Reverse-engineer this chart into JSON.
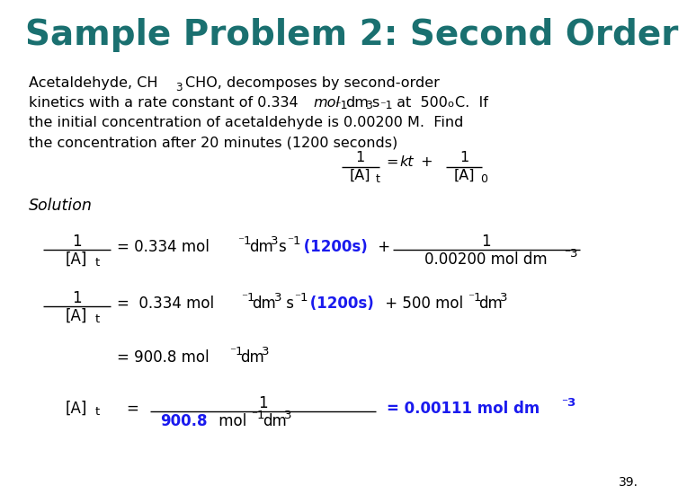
{
  "title": "Sample Problem 2: Second Order",
  "title_color": "#1a7070",
  "bg_color": "#ffffff",
  "body_color": "#000000",
  "highlight_color": "#1a1aee",
  "page_number": "39."
}
